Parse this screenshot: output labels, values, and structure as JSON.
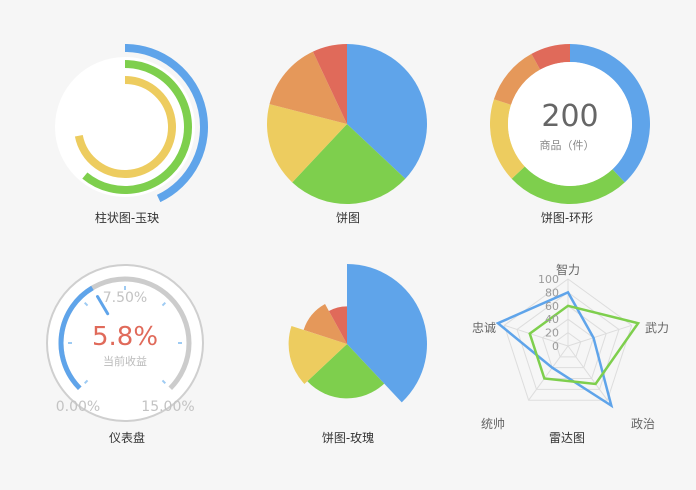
{
  "colors": {
    "blue": "#5fa4ea",
    "green": "#7ecf4d",
    "yellow": "#edcc5f",
    "orange": "#e5985a",
    "red": "#e06a5a",
    "gray": "#cccccc",
    "bg": "#f6f6f6",
    "text": "#333333",
    "muted": "#b3b3b3"
  },
  "chart_data": [
    {
      "type": "bar",
      "variant": "radial-arc",
      "title": "柱状图-玉玦",
      "series": [
        {
          "color": "blue",
          "value": 0.43
        },
        {
          "color": "green",
          "value": 0.61
        },
        {
          "color": "yellow",
          "value": 0.72
        }
      ]
    },
    {
      "type": "pie",
      "title": "饼图",
      "slices": [
        {
          "color": "blue",
          "value": 37
        },
        {
          "color": "green",
          "value": 25
        },
        {
          "color": "yellow",
          "value": 17
        },
        {
          "color": "orange",
          "value": 14
        },
        {
          "color": "red",
          "value": 7
        }
      ]
    },
    {
      "type": "pie",
      "variant": "ring",
      "title": "饼图-环形",
      "center_value": "200",
      "center_label": "商品（件）",
      "slices": [
        {
          "color": "blue",
          "value": 38
        },
        {
          "color": "green",
          "value": 25
        },
        {
          "color": "yellow",
          "value": 17
        },
        {
          "color": "orange",
          "value": 12
        },
        {
          "color": "red",
          "value": 8
        }
      ]
    },
    {
      "type": "gauge",
      "title": "仪表盘",
      "value_text": "5.8%",
      "value_label": "当前收益",
      "min_label": "0.00%",
      "mid_label": "7.50%",
      "max_label": "15.00%",
      "min": 0,
      "max": 15,
      "value": 5.8
    },
    {
      "type": "pie",
      "variant": "rose",
      "title": "饼图-玫瑰",
      "slices": [
        {
          "color": "blue",
          "value": 38,
          "radius": 1.0
        },
        {
          "color": "green",
          "value": 25,
          "radius": 0.68
        },
        {
          "color": "yellow",
          "value": 17,
          "radius": 0.73
        },
        {
          "color": "orange",
          "value": 12,
          "radius": 0.57
        },
        {
          "color": "red",
          "value": 8,
          "radius": 0.47
        }
      ]
    },
    {
      "type": "radar",
      "title": "雷达图",
      "axes": [
        "智力",
        "武力",
        "政治",
        "统帅",
        "忠诚"
      ],
      "ticks": [
        "0",
        "20",
        "40",
        "60",
        "80",
        "100"
      ],
      "max": 100,
      "series": [
        {
          "color": "blue",
          "values": [
            80,
            40,
            110,
            40,
            110
          ]
        },
        {
          "color": "green",
          "values": [
            60,
            110,
            70,
            60,
            60
          ]
        }
      ]
    }
  ]
}
